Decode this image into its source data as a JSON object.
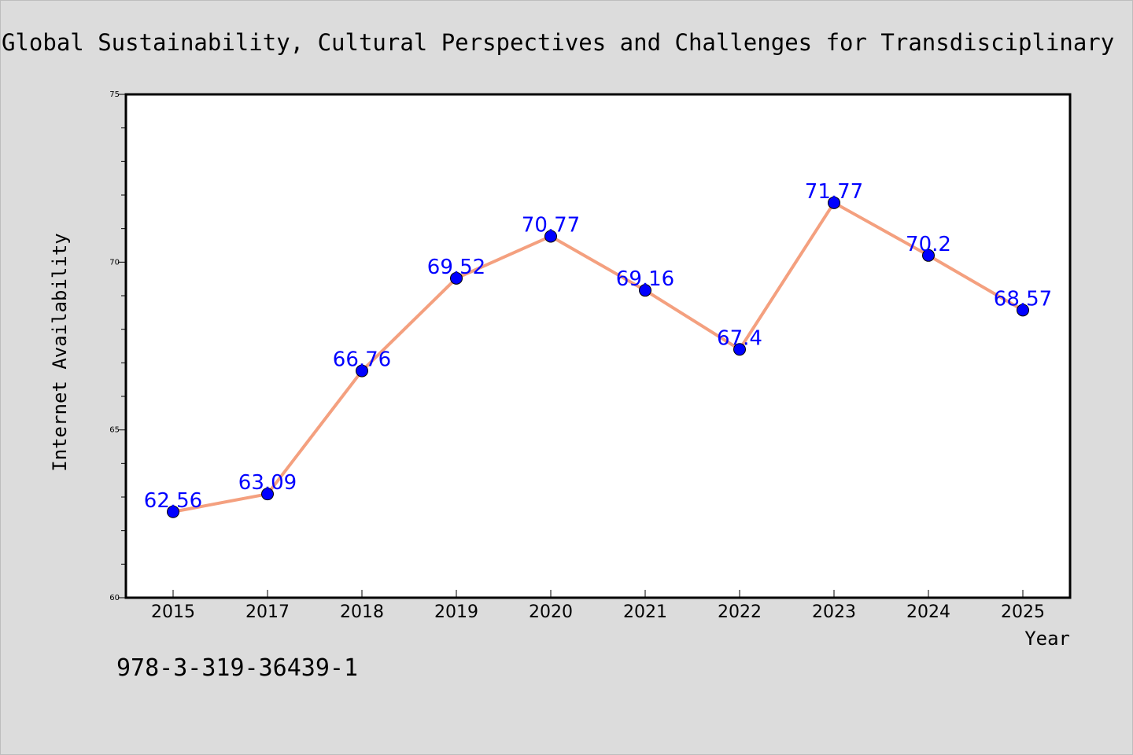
{
  "page": {
    "background": "#dcdcdc",
    "title": "Global Sustainability, Cultural Perspectives and Challenges for Transdisciplinary",
    "footer_note": "978-3-319-36439-1"
  },
  "chart_data": {
    "type": "line",
    "title": "Global Sustainability, Cultural Perspectives and Challenges for Transdisciplinary",
    "xlabel": "Year",
    "ylabel": "Internet Availability",
    "categories": [
      "2015",
      "2017",
      "2018",
      "2019",
      "2020",
      "2021",
      "2022",
      "2023",
      "2024",
      "2025"
    ],
    "series": [
      {
        "values": [
          62.56,
          63.09,
          66.76,
          69.52,
          70.77,
          69.16,
          67.4,
          71.77,
          70.2,
          68.57
        ],
        "data_labels": [
          "62.56",
          "63.09",
          "66.76",
          "69.52",
          "70.77",
          "69.16",
          "67.4",
          "71.77",
          "70.2",
          "68.57"
        ],
        "line_color": "#f4a07f",
        "marker_color": "#0000ff",
        "label_color": "#0000ff"
      }
    ],
    "ylim": [
      60,
      75
    ],
    "y_major_ticks": [
      60,
      65,
      70,
      75
    ],
    "y_minor_step": 1,
    "grid": false,
    "legend": "none",
    "plot_background": "#ffffff"
  }
}
